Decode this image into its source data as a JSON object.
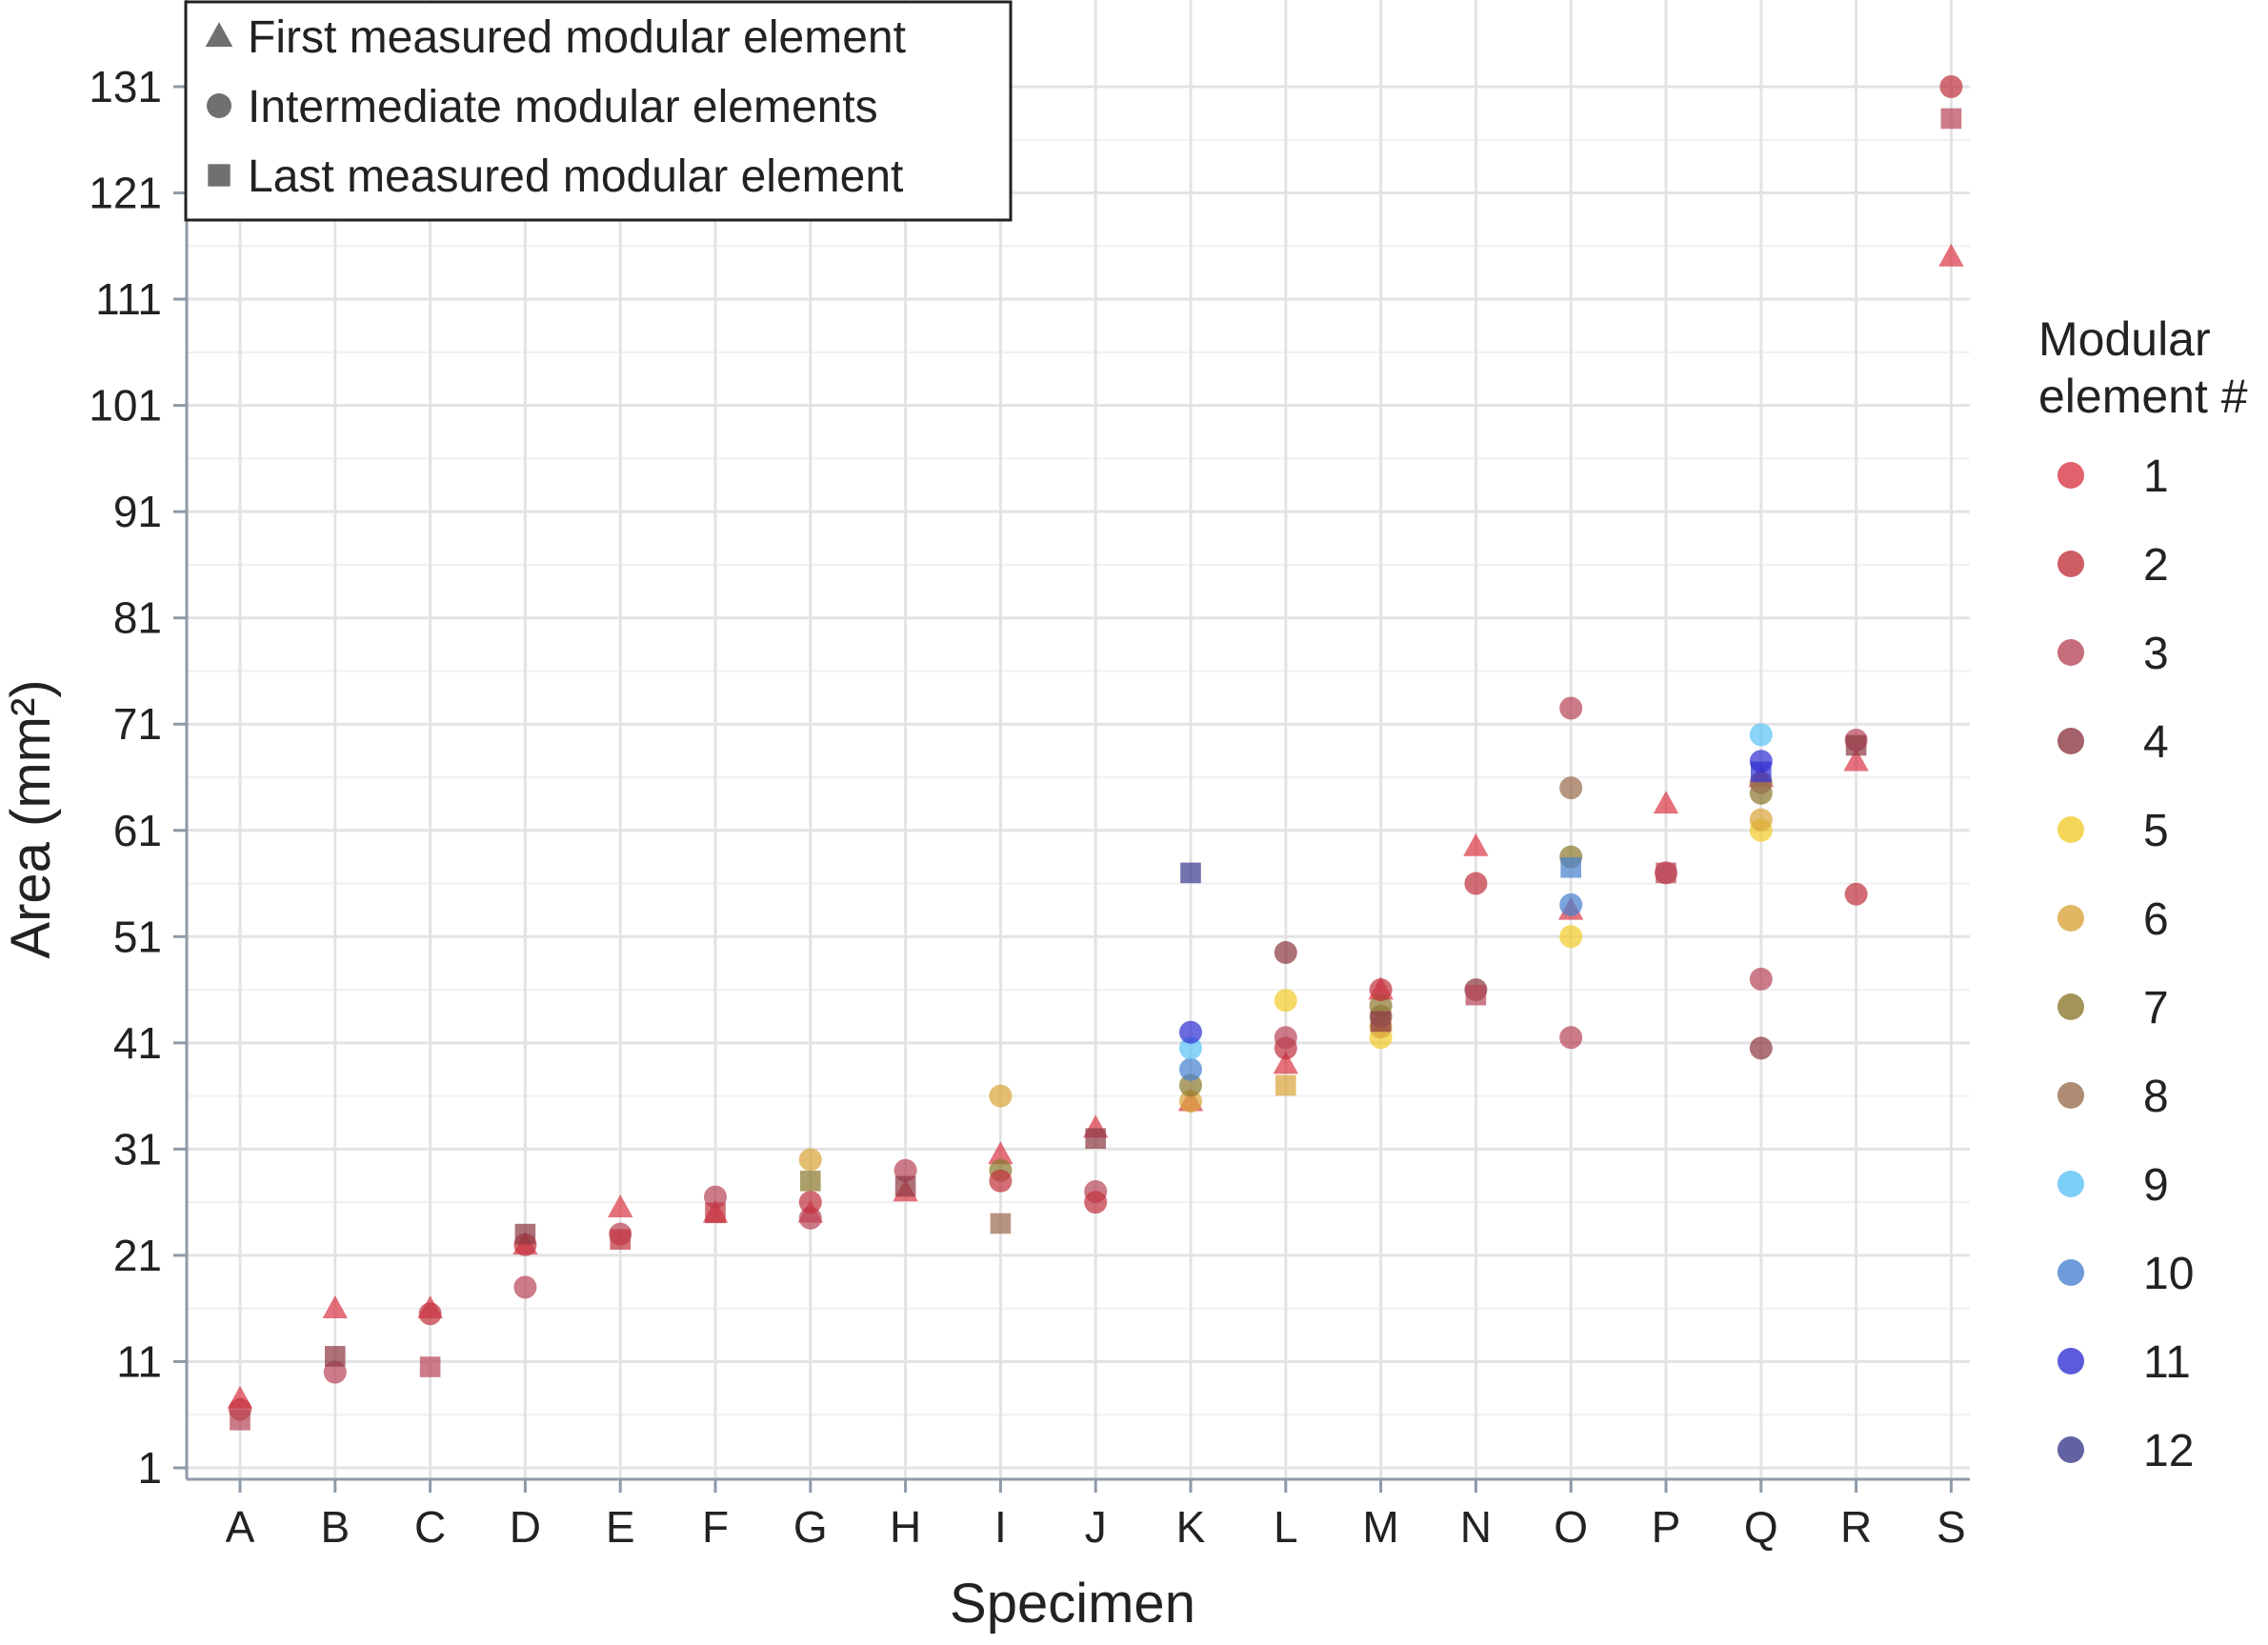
{
  "chart_data": {
    "type": "scatter",
    "xlabel": "Specimen",
    "ylabel": "Area (mm²)",
    "categories": [
      "A",
      "B",
      "C",
      "D",
      "E",
      "F",
      "G",
      "H",
      "I",
      "J",
      "K",
      "L",
      "M",
      "N",
      "O",
      "P",
      "Q",
      "R",
      "S"
    ],
    "yticks": [
      1,
      11,
      21,
      31,
      41,
      51,
      61,
      71,
      81,
      91,
      101,
      111,
      121,
      131
    ],
    "ylim": [
      0,
      133
    ],
    "grid": true,
    "shape_legend": {
      "placement": "top-left",
      "items": [
        {
          "shape": "triangle",
          "label": "First measured modular element"
        },
        {
          "shape": "circle",
          "label": "Intermediate modular elements"
        },
        {
          "shape": "square",
          "label": "Last measured modular element"
        }
      ]
    },
    "color_legend": {
      "title_lines": [
        "Modular",
        "element #"
      ],
      "placement": "right",
      "items": [
        {
          "label": "1",
          "color": "#d93a48"
        },
        {
          "label": "2",
          "color": "#c23540"
        },
        {
          "label": "3",
          "color": "#b8485a"
        },
        {
          "label": "4",
          "color": "#8e3a44"
        },
        {
          "label": "5",
          "color": "#f2cc2e"
        },
        {
          "label": "6",
          "color": "#d9a53c"
        },
        {
          "label": "7",
          "color": "#8c7a30"
        },
        {
          "label": "8",
          "color": "#9a6e50"
        },
        {
          "label": "9",
          "color": "#5cc3f5"
        },
        {
          "label": "10",
          "color": "#4a82d0"
        },
        {
          "label": "11",
          "color": "#3232d2"
        },
        {
          "label": "12",
          "color": "#3b3b8c"
        }
      ]
    },
    "points": [
      {
        "specimen": "A",
        "element": 1,
        "shape": "triangle",
        "area": 7.5
      },
      {
        "specimen": "A",
        "element": 2,
        "shape": "circle",
        "area": 6.5
      },
      {
        "specimen": "A",
        "element": 3,
        "shape": "square",
        "area": 5.5
      },
      {
        "specimen": "B",
        "element": 1,
        "shape": "triangle",
        "area": 16
      },
      {
        "specimen": "B",
        "element": 3,
        "shape": "circle",
        "area": 10
      },
      {
        "specimen": "B",
        "element": 4,
        "shape": "square",
        "area": 11.5
      },
      {
        "specimen": "C",
        "element": 1,
        "shape": "triangle",
        "area": 16
      },
      {
        "specimen": "C",
        "element": 2,
        "shape": "circle",
        "area": 15.5
      },
      {
        "specimen": "C",
        "element": 3,
        "shape": "square",
        "area": 10.5
      },
      {
        "specimen": "D",
        "element": 1,
        "shape": "triangle",
        "area": 22
      },
      {
        "specimen": "D",
        "element": 3,
        "shape": "circle",
        "area": 18
      },
      {
        "specimen": "D",
        "element": 2,
        "shape": "circle",
        "area": 22
      },
      {
        "specimen": "D",
        "element": 4,
        "shape": "square",
        "area": 23
      },
      {
        "specimen": "E",
        "element": 1,
        "shape": "triangle",
        "area": 25.5
      },
      {
        "specimen": "E",
        "element": 3,
        "shape": "circle",
        "area": 23
      },
      {
        "specimen": "E",
        "element": 2,
        "shape": "square",
        "area": 22.5
      },
      {
        "specimen": "F",
        "element": 1,
        "shape": "triangle",
        "area": 25
      },
      {
        "specimen": "F",
        "element": 3,
        "shape": "circle",
        "area": 26.5
      },
      {
        "specimen": "F",
        "element": 2,
        "shape": "square",
        "area": 25
      },
      {
        "specimen": "G",
        "element": 1,
        "shape": "triangle",
        "area": 25
      },
      {
        "specimen": "G",
        "element": 3,
        "shape": "circle",
        "area": 24.5
      },
      {
        "specimen": "G",
        "element": 2,
        "shape": "circle",
        "area": 26
      },
      {
        "specimen": "G",
        "element": 6,
        "shape": "circle",
        "area": 30
      },
      {
        "specimen": "G",
        "element": 7,
        "shape": "square",
        "area": 28
      },
      {
        "specimen": "H",
        "element": 1,
        "shape": "triangle",
        "area": 27
      },
      {
        "specimen": "H",
        "element": 3,
        "shape": "circle",
        "area": 29
      },
      {
        "specimen": "H",
        "element": 4,
        "shape": "square",
        "area": 27.5
      },
      {
        "specimen": "I",
        "element": 1,
        "shape": "triangle",
        "area": 30.5
      },
      {
        "specimen": "I",
        "element": 6,
        "shape": "circle",
        "area": 36
      },
      {
        "specimen": "I",
        "element": 7,
        "shape": "circle",
        "area": 29
      },
      {
        "specimen": "I",
        "element": 2,
        "shape": "circle",
        "area": 28
      },
      {
        "specimen": "I",
        "element": 8,
        "shape": "square",
        "area": 24
      },
      {
        "specimen": "J",
        "element": 1,
        "shape": "triangle",
        "area": 33
      },
      {
        "specimen": "J",
        "element": 3,
        "shape": "circle",
        "area": 27
      },
      {
        "specimen": "J",
        "element": 2,
        "shape": "circle",
        "area": 26
      },
      {
        "specimen": "J",
        "element": 4,
        "shape": "square",
        "area": 32
      },
      {
        "specimen": "K",
        "element": 1,
        "shape": "triangle",
        "area": 35.5
      },
      {
        "specimen": "K",
        "element": 6,
        "shape": "circle",
        "area": 35.5
      },
      {
        "specimen": "K",
        "element": 7,
        "shape": "circle",
        "area": 37
      },
      {
        "specimen": "K",
        "element": 10,
        "shape": "circle",
        "area": 38.5
      },
      {
        "specimen": "K",
        "element": 9,
        "shape": "circle",
        "area": 40.5
      },
      {
        "specimen": "K",
        "element": 11,
        "shape": "circle",
        "area": 42
      },
      {
        "specimen": "K",
        "element": 12,
        "shape": "square",
        "area": 57
      },
      {
        "specimen": "L",
        "element": 1,
        "shape": "triangle",
        "area": 39
      },
      {
        "specimen": "L",
        "element": 2,
        "shape": "circle",
        "area": 40.5
      },
      {
        "specimen": "L",
        "element": 3,
        "shape": "circle",
        "area": 41.5
      },
      {
        "specimen": "L",
        "element": 5,
        "shape": "circle",
        "area": 45
      },
      {
        "specimen": "L",
        "element": 4,
        "shape": "circle",
        "area": 49.5
      },
      {
        "specimen": "L",
        "element": 6,
        "shape": "square",
        "area": 37
      },
      {
        "specimen": "M",
        "element": 1,
        "shape": "triangle",
        "area": 46
      },
      {
        "specimen": "M",
        "element": 5,
        "shape": "circle",
        "area": 41.5
      },
      {
        "specimen": "M",
        "element": 6,
        "shape": "circle",
        "area": 42.5
      },
      {
        "specimen": "M",
        "element": 8,
        "shape": "circle",
        "area": 43.5
      },
      {
        "specimen": "M",
        "element": 7,
        "shape": "circle",
        "area": 44.5
      },
      {
        "specimen": "M",
        "element": 2,
        "shape": "circle",
        "area": 46
      },
      {
        "specimen": "M",
        "element": 4,
        "shape": "square",
        "area": 43
      },
      {
        "specimen": "N",
        "element": 1,
        "shape": "triangle",
        "area": 59.5
      },
      {
        "specimen": "N",
        "element": 2,
        "shape": "circle",
        "area": 56
      },
      {
        "specimen": "N",
        "element": 4,
        "shape": "circle",
        "area": 46
      },
      {
        "specimen": "N",
        "element": 3,
        "shape": "square",
        "area": 45.5
      },
      {
        "specimen": "O",
        "element": 1,
        "shape": "triangle",
        "area": 53.5
      },
      {
        "specimen": "O",
        "element": 3,
        "shape": "circle",
        "area": 41.5
      },
      {
        "specimen": "O",
        "element": 5,
        "shape": "circle",
        "area": 51
      },
      {
        "specimen": "O",
        "element": 10,
        "shape": "circle",
        "area": 54
      },
      {
        "specimen": "O",
        "element": 7,
        "shape": "circle",
        "area": 58.5
      },
      {
        "specimen": "O",
        "element": 8,
        "shape": "circle",
        "area": 65
      },
      {
        "specimen": "O",
        "element": 3,
        "shape": "circle",
        "area": 72.5
      },
      {
        "specimen": "O",
        "element": 10,
        "shape": "square",
        "area": 57.5
      },
      {
        "specimen": "P",
        "element": 1,
        "shape": "triangle",
        "area": 63.5
      },
      {
        "specimen": "P",
        "element": 2,
        "shape": "circle",
        "area": 57
      },
      {
        "specimen": "P",
        "element": 3,
        "shape": "square",
        "area": 57
      },
      {
        "specimen": "Q",
        "element": 1,
        "shape": "triangle",
        "area": 66
      },
      {
        "specimen": "Q",
        "element": 4,
        "shape": "circle",
        "area": 40.5
      },
      {
        "specimen": "Q",
        "element": 3,
        "shape": "circle",
        "area": 47
      },
      {
        "specimen": "Q",
        "element": 5,
        "shape": "circle",
        "area": 61
      },
      {
        "specimen": "Q",
        "element": 6,
        "shape": "circle",
        "area": 62
      },
      {
        "specimen": "Q",
        "element": 7,
        "shape": "circle",
        "area": 64.5
      },
      {
        "specimen": "Q",
        "element": 8,
        "shape": "circle",
        "area": 65.5
      },
      {
        "specimen": "Q",
        "element": 11,
        "shape": "circle",
        "area": 67.5
      },
      {
        "specimen": "Q",
        "element": 9,
        "shape": "circle",
        "area": 70
      },
      {
        "specimen": "Q",
        "element": 11,
        "shape": "square",
        "area": 66.5
      },
      {
        "specimen": "R",
        "element": 1,
        "shape": "triangle",
        "area": 67.5
      },
      {
        "specimen": "R",
        "element": 2,
        "shape": "circle",
        "area": 55
      },
      {
        "specimen": "R",
        "element": 3,
        "shape": "circle",
        "area": 69.5
      },
      {
        "specimen": "R",
        "element": 4,
        "shape": "square",
        "area": 69
      },
      {
        "specimen": "S",
        "element": 1,
        "shape": "triangle",
        "area": 115
      },
      {
        "specimen": "S",
        "element": 2,
        "shape": "circle",
        "area": 131
      },
      {
        "specimen": "S",
        "element": 3,
        "shape": "square",
        "area": 128
      }
    ]
  }
}
